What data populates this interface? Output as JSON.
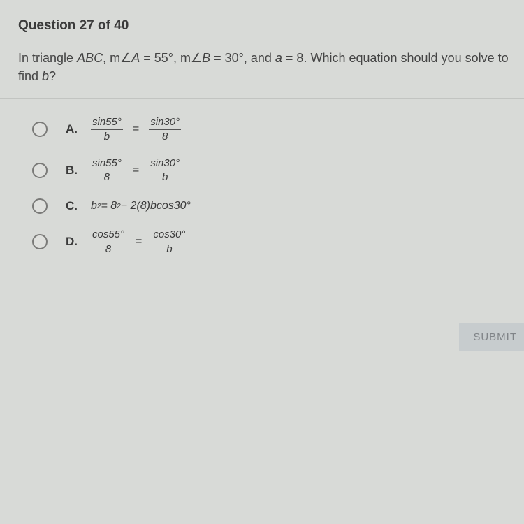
{
  "title": "Question 27 of 40",
  "prompt": {
    "pre": "In triangle ",
    "tri": "ABC",
    "seg1": ", m∠",
    "A": "A",
    "valA": " = 55°, m∠",
    "B": "B",
    "valB": " = 30°, and ",
    "av": "a",
    "valAv": " = 8. Which equation should you solve to find ",
    "bv": "b",
    "q": "?"
  },
  "options": {
    "A": {
      "letter": "A.",
      "f1n": "sin55°",
      "f1d": "b",
      "f2n": "sin30°",
      "f2d": "8"
    },
    "B": {
      "letter": "B.",
      "f1n": "sin55°",
      "f1d": "8",
      "f2n": "sin30°",
      "f2d": "b"
    },
    "C": {
      "letter": "C.",
      "text_pre": "b",
      "sq": "2",
      "text_mid": " = 8",
      "sq2": "2",
      "text_post": " − 2(8)bcos30°"
    },
    "D": {
      "letter": "D.",
      "f1n": "cos55°",
      "f1d": "8",
      "f2n": "cos30°",
      "f2d": "b"
    }
  },
  "eq": "=",
  "submit": "SUBMIT",
  "colors": {
    "bg": "#d8dad7",
    "text": "#3a3a3a",
    "rule": "#c2c4c1",
    "submit_bg": "#c7ccce",
    "submit_fg": "#808488",
    "radio_border": "#7a7a78"
  }
}
